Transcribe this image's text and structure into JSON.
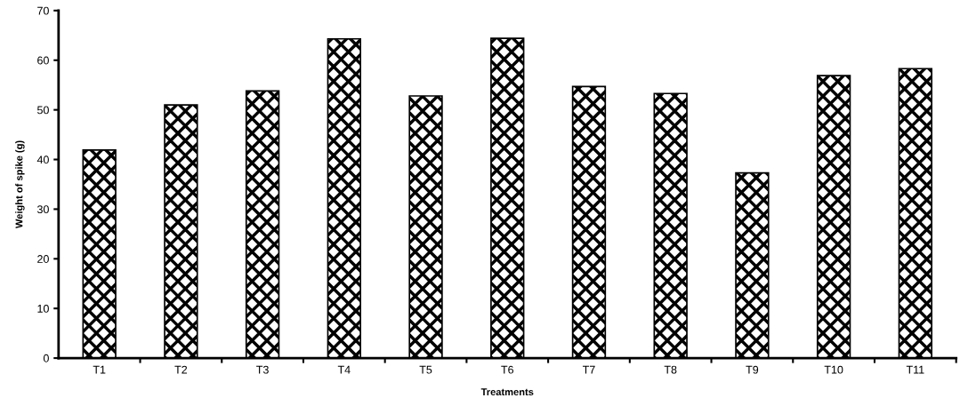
{
  "chart_data": {
    "type": "bar",
    "xlabel": "Treatments",
    "ylabel": "Weight of spike (g)",
    "categories": [
      "T1",
      "T2",
      "T3",
      "T4",
      "T5",
      "T6",
      "T7",
      "T8",
      "T9",
      "T10",
      "T11"
    ],
    "values": [
      41.9,
      51.0,
      53.8,
      64.3,
      52.8,
      64.4,
      54.7,
      53.3,
      37.3,
      56.9,
      58.3
    ],
    "color": "#000000",
    "ylim": [
      0,
      70
    ],
    "yticks": [
      0,
      10,
      20,
      30,
      40,
      50,
      60,
      70
    ],
    "grid": false
  }
}
